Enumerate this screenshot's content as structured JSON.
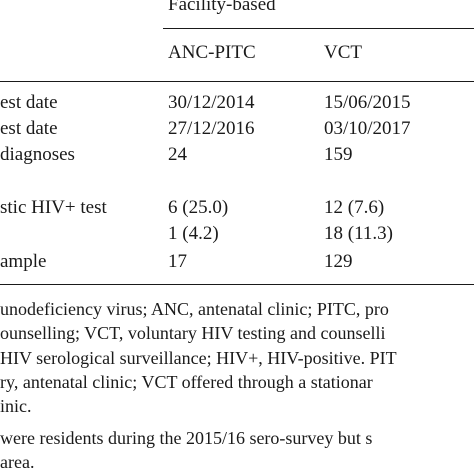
{
  "table": {
    "group_header": "Facility-based",
    "columns": [
      "ANC-PITC",
      "VCT"
    ],
    "rows": [
      {
        "label": "est date",
        "anc": "30/12/2014",
        "vct": "15/06/2015"
      },
      {
        "label": "est date",
        "anc": "27/12/2016",
        "vct": "03/10/2017"
      },
      {
        "label": "diagnoses",
        "anc": "24",
        "vct": "159"
      },
      {
        "label": "stic HIV+ test",
        "anc": "6 (25.0)",
        "vct": "12 (7.6)"
      },
      {
        "label": "",
        "anc": "1 (4.2)",
        "vct": "18 (11.3)"
      },
      {
        "label": "ample",
        "anc": "17",
        "vct": "129"
      }
    ]
  },
  "footnotes": [
    "unodeficiency virus; ANC, antenatal clinic; PITC, pro",
    "ounselling; VCT, voluntary HIV testing and counselli",
    "HIV serological surveillance; HIV+, HIV-positive. PIT",
    "ry, antenatal clinic; VCT offered through a stationar",
    "inic.",
    " were residents during the 2015/16 sero-survey but s",
    "area."
  ]
}
